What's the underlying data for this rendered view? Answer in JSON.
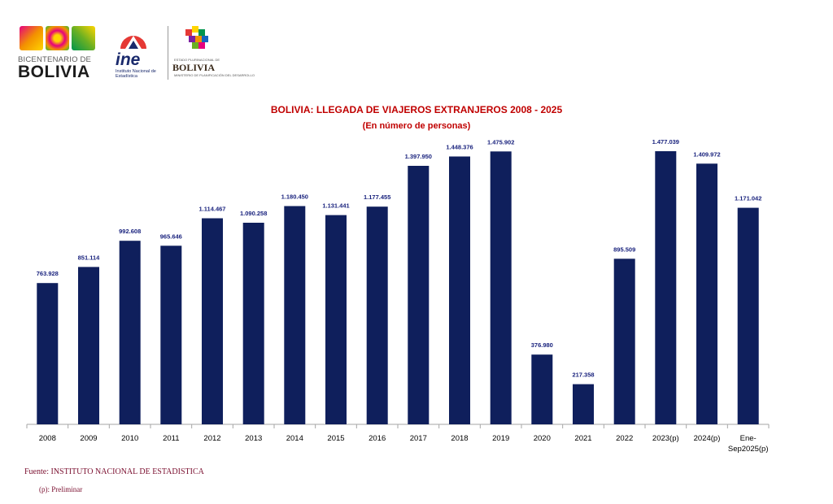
{
  "header": {
    "logo_bicentenario_line1": "BICENTENARIO DE",
    "logo_bicentenario_line2": "BOLIVIA",
    "logo_ine_word": "ine",
    "logo_ine_sub": "Instituto Nacional de Estadística",
    "logo_estado_small": "ESTADO PLURINACIONAL DE",
    "logo_estado_word": "BOLIVIA",
    "logo_estado_ministry": "MINISTERIO DE PLANIFICACIÓN DEL DESARROLLO"
  },
  "colors": {
    "bar": "#0f1f5c",
    "title": "#c00000",
    "label": "#1a237e",
    "source": "#7b1030"
  },
  "chart_data": {
    "type": "bar",
    "title": "BOLIVIA: LLEGADA DE VIAJEROS EXTRANJEROS  2008 - 2025",
    "subtitle": "(En número de personas)",
    "categories": [
      "2008",
      "2009",
      "2010",
      "2011",
      "2012",
      "2013",
      "2014",
      "2015",
      "2016",
      "2017",
      "2018",
      "2019",
      "2020",
      "2021",
      "2022",
      "2023(p)",
      "2024(p)",
      "Ene-Sep2025(p)"
    ],
    "category_labels": [
      [
        "2008"
      ],
      [
        "2009"
      ],
      [
        "2010"
      ],
      [
        "2011"
      ],
      [
        "2012"
      ],
      [
        "2013"
      ],
      [
        "2014"
      ],
      [
        "2015"
      ],
      [
        "2016"
      ],
      [
        "2017"
      ],
      [
        "2018"
      ],
      [
        "2019"
      ],
      [
        "2020"
      ],
      [
        "2021"
      ],
      [
        "2022"
      ],
      [
        "2023(p)"
      ],
      [
        "2024(p)"
      ],
      [
        "Ene-",
        "Sep2025(p)"
      ]
    ],
    "values": [
      763928,
      851114,
      992608,
      965646,
      1114467,
      1090258,
      1180450,
      1131441,
      1177455,
      1397950,
      1448376,
      1475902,
      376980,
      217358,
      895509,
      1477039,
      1409972,
      1171042
    ],
    "value_labels": [
      "763.928",
      "851.114",
      "992.608",
      "965.646",
      "1.114.467",
      "1.090.258",
      "1.180.450",
      "1.131.441",
      "1.177.455",
      "1.397.950",
      "1.448.376",
      "1.475.902",
      "376.980",
      "217.358",
      "895.509",
      "1.477.039",
      "1.409.972",
      "1.171.042"
    ],
    "ylim": [
      0,
      1477039
    ],
    "grid": false,
    "legend": "none"
  },
  "footer": {
    "source": "Fuente: INSTITUTO NACIONAL DE ESTADISTICA",
    "note": "(p): Preliminar"
  }
}
